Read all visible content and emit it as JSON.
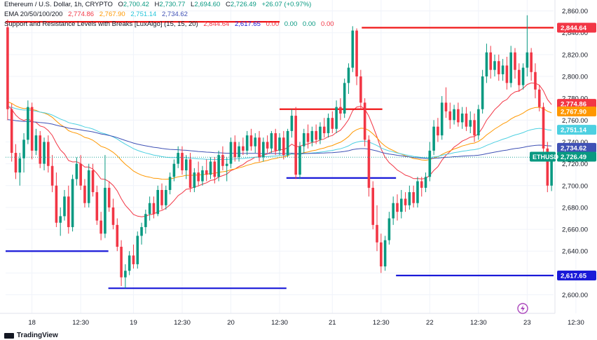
{
  "legend": {
    "line1": {
      "symbol": "Ethereum / U.S. Dollar, 1h, CRYPTO",
      "open_label": "O",
      "open": "2,700.42",
      "high_label": "H",
      "high": "2,730.77",
      "low_label": "L",
      "low": "2,694.60",
      "close_label": "C",
      "close": "2,726.49",
      "change": "+26.07 (+0.97%)"
    },
    "line2": {
      "label": "EMA 20/50/100/200",
      "ema20": "2,774.86",
      "ema50": "2,767.90",
      "ema100": "2,751.14",
      "ema200": "2,734.62"
    },
    "line3": {
      "label": "Support and Resistance Levels with Breaks [LuxAlgo] (15, 15, 20)",
      "v1": "2,844.64",
      "v2": "2,617.65",
      "v3": "0.00",
      "v4": "0.00",
      "v5": "0.00",
      "v6": "0.00"
    }
  },
  "branding": {
    "text": "TradingView"
  },
  "colors": {
    "up": "#089981",
    "down": "#f23645",
    "resistance": "#f01616",
    "support": "#1a1ad8",
    "ema20": "#f23645",
    "ema50": "#ff9800",
    "ema100": "#4dd0e1",
    "ema200": "#3f51b5",
    "crosshair": "#26a69a"
  },
  "chart_data": {
    "type": "candlestick",
    "title": "Ethereum / U.S. Dollar, 1h, CRYPTO",
    "ylim": [
      2583,
      2870
    ],
    "y_ticks": [
      2600,
      2620,
      2640,
      2660,
      2680,
      2700,
      2720,
      2740,
      2760,
      2780,
      2800,
      2820,
      2840,
      2860
    ],
    "x_ticks": [
      {
        "bar": 6,
        "label": "18"
      },
      {
        "bar": 18,
        "label": "12:30"
      },
      {
        "bar": 31,
        "label": "19"
      },
      {
        "bar": 43,
        "label": "12:30"
      },
      {
        "bar": 55,
        "label": "20"
      },
      {
        "bar": 67,
        "label": "12:30"
      },
      {
        "bar": 80,
        "label": "21"
      },
      {
        "bar": 92,
        "label": "12:30"
      },
      {
        "bar": 104,
        "label": "22"
      },
      {
        "bar": 116,
        "label": "12:30"
      },
      {
        "bar": 128,
        "label": "23"
      },
      {
        "bar": 140,
        "label": "12:30"
      },
      {
        "bar": 153,
        "label": "24"
      },
      {
        "bar": 165,
        "label": "12:30"
      }
    ],
    "candles": [
      [
        2845,
        2852,
        2760,
        2770
      ],
      [
        2770,
        2775,
        2722,
        2730
      ],
      [
        2730,
        2738,
        2706,
        2712
      ],
      [
        2712,
        2730,
        2700,
        2725
      ],
      [
        2725,
        2748,
        2712,
        2742
      ],
      [
        2742,
        2778,
        2738,
        2772
      ],
      [
        2772,
        2776,
        2724,
        2732
      ],
      [
        2732,
        2752,
        2728,
        2746
      ],
      [
        2746,
        2750,
        2716,
        2720
      ],
      [
        2720,
        2744,
        2714,
        2740
      ],
      [
        2740,
        2746,
        2712,
        2718
      ],
      [
        2718,
        2728,
        2694,
        2700
      ],
      [
        2700,
        2712,
        2662,
        2666
      ],
      [
        2666,
        2680,
        2654,
        2672
      ],
      [
        2672,
        2696,
        2668,
        2690
      ],
      [
        2690,
        2700,
        2656,
        2662
      ],
      [
        2662,
        2710,
        2658,
        2706
      ],
      [
        2706,
        2726,
        2700,
        2720
      ],
      [
        2720,
        2728,
        2696,
        2700
      ],
      [
        2700,
        2706,
        2680,
        2684
      ],
      [
        2684,
        2720,
        2680,
        2714
      ],
      [
        2714,
        2720,
        2690,
        2694
      ],
      [
        2694,
        2700,
        2664,
        2668
      ],
      [
        2668,
        2676,
        2650,
        2656
      ],
      [
        2656,
        2728,
        2652,
        2698
      ],
      [
        2698,
        2704,
        2676,
        2680
      ],
      [
        2680,
        2688,
        2660,
        2664
      ],
      [
        2664,
        2670,
        2640,
        2644
      ],
      [
        2644,
        2650,
        2608,
        2616
      ],
      [
        2616,
        2628,
        2606,
        2622
      ],
      [
        2622,
        2640,
        2618,
        2636
      ],
      [
        2636,
        2646,
        2624,
        2628
      ],
      [
        2628,
        2658,
        2624,
        2654
      ],
      [
        2654,
        2666,
        2646,
        2662
      ],
      [
        2662,
        2678,
        2656,
        2674
      ],
      [
        2674,
        2690,
        2668,
        2684
      ],
      [
        2684,
        2690,
        2670,
        2674
      ],
      [
        2674,
        2700,
        2672,
        2696
      ],
      [
        2696,
        2702,
        2678,
        2682
      ],
      [
        2682,
        2700,
        2678,
        2696
      ],
      [
        2696,
        2712,
        2692,
        2708
      ],
      [
        2708,
        2724,
        2704,
        2720
      ],
      [
        2720,
        2736,
        2716,
        2730
      ],
      [
        2730,
        2736,
        2710,
        2714
      ],
      [
        2714,
        2728,
        2706,
        2724
      ],
      [
        2724,
        2730,
        2694,
        2698
      ],
      [
        2698,
        2716,
        2694,
        2712
      ],
      [
        2712,
        2722,
        2700,
        2704
      ],
      [
        2704,
        2718,
        2700,
        2714
      ],
      [
        2714,
        2724,
        2704,
        2710
      ],
      [
        2710,
        2726,
        2706,
        2722
      ],
      [
        2722,
        2726,
        2702,
        2708
      ],
      [
        2708,
        2732,
        2704,
        2728
      ],
      [
        2728,
        2736,
        2714,
        2718
      ],
      [
        2718,
        2726,
        2704,
        2720
      ],
      [
        2720,
        2744,
        2716,
        2740
      ],
      [
        2740,
        2746,
        2722,
        2726
      ],
      [
        2726,
        2740,
        2722,
        2736
      ],
      [
        2736,
        2744,
        2728,
        2732
      ],
      [
        2732,
        2750,
        2728,
        2746
      ],
      [
        2746,
        2752,
        2732,
        2736
      ],
      [
        2736,
        2748,
        2730,
        2744
      ],
      [
        2744,
        2750,
        2722,
        2726
      ],
      [
        2726,
        2744,
        2722,
        2740
      ],
      [
        2740,
        2746,
        2730,
        2734
      ],
      [
        2734,
        2750,
        2730,
        2748
      ],
      [
        2748,
        2752,
        2728,
        2732
      ],
      [
        2732,
        2748,
        2728,
        2744
      ],
      [
        2744,
        2750,
        2724,
        2728
      ],
      [
        2728,
        2752,
        2726,
        2750
      ],
      [
        2750,
        2770,
        2744,
        2764
      ],
      [
        2764,
        2772,
        2706,
        2710
      ],
      [
        2710,
        2740,
        2706,
        2736
      ],
      [
        2736,
        2752,
        2730,
        2748
      ],
      [
        2748,
        2756,
        2734,
        2740
      ],
      [
        2740,
        2754,
        2736,
        2750
      ],
      [
        2750,
        2756,
        2738,
        2742
      ],
      [
        2742,
        2758,
        2738,
        2754
      ],
      [
        2754,
        2762,
        2744,
        2748
      ],
      [
        2748,
        2766,
        2744,
        2762
      ],
      [
        2762,
        2768,
        2748,
        2752
      ],
      [
        2752,
        2778,
        2748,
        2772
      ],
      [
        2772,
        2780,
        2760,
        2766
      ],
      [
        2766,
        2798,
        2762,
        2794
      ],
      [
        2794,
        2812,
        2784,
        2808
      ],
      [
        2808,
        2846,
        2804,
        2842
      ],
      [
        2842,
        2844,
        2792,
        2800
      ],
      [
        2800,
        2806,
        2770,
        2776
      ],
      [
        2776,
        2780,
        2736,
        2742
      ],
      [
        2742,
        2746,
        2690,
        2698
      ],
      [
        2698,
        2704,
        2660,
        2664
      ],
      [
        2664,
        2682,
        2640,
        2648
      ],
      [
        2648,
        2656,
        2620,
        2626
      ],
      [
        2626,
        2654,
        2622,
        2650
      ],
      [
        2650,
        2676,
        2646,
        2670
      ],
      [
        2670,
        2690,
        2664,
        2684
      ],
      [
        2684,
        2692,
        2668,
        2676
      ],
      [
        2676,
        2696,
        2670,
        2688
      ],
      [
        2688,
        2694,
        2676,
        2682
      ],
      [
        2682,
        2700,
        2678,
        2694
      ],
      [
        2694,
        2700,
        2680,
        2684
      ],
      [
        2684,
        2708,
        2680,
        2704
      ],
      [
        2704,
        2708,
        2690,
        2698
      ],
      [
        2698,
        2712,
        2694,
        2708
      ],
      [
        2708,
        2740,
        2704,
        2732
      ],
      [
        2732,
        2760,
        2728,
        2754
      ],
      [
        2754,
        2762,
        2740,
        2746
      ],
      [
        2746,
        2782,
        2742,
        2776
      ],
      [
        2776,
        2790,
        2762,
        2768
      ],
      [
        2768,
        2776,
        2752,
        2760
      ],
      [
        2760,
        2774,
        2756,
        2770
      ],
      [
        2770,
        2776,
        2754,
        2758
      ],
      [
        2758,
        2772,
        2752,
        2766
      ],
      [
        2766,
        2772,
        2750,
        2754
      ],
      [
        2754,
        2768,
        2748,
        2760
      ],
      [
        2760,
        2766,
        2740,
        2746
      ],
      [
        2746,
        2774,
        2742,
        2770
      ],
      [
        2770,
        2806,
        2766,
        2800
      ],
      [
        2800,
        2830,
        2794,
        2822
      ],
      [
        2822,
        2828,
        2798,
        2806
      ],
      [
        2806,
        2820,
        2800,
        2814
      ],
      [
        2814,
        2820,
        2796,
        2802
      ],
      [
        2802,
        2816,
        2796,
        2810
      ],
      [
        2810,
        2818,
        2788,
        2794
      ],
      [
        2794,
        2828,
        2790,
        2822
      ],
      [
        2822,
        2826,
        2798,
        2806
      ],
      [
        2806,
        2812,
        2786,
        2792
      ],
      [
        2792,
        2812,
        2788,
        2808
      ],
      [
        2808,
        2856,
        2800,
        2822
      ],
      [
        2822,
        2826,
        2796,
        2804
      ],
      [
        2804,
        2812,
        2780,
        2788
      ],
      [
        2788,
        2792,
        2768,
        2772
      ],
      [
        2772,
        2776,
        2730,
        2734
      ],
      [
        2734,
        2740,
        2694,
        2700
      ],
      [
        2700,
        2731,
        2695,
        2726
      ]
    ],
    "ema": [
      {
        "name": "EMA 20",
        "value": 2774.86
      },
      {
        "name": "EMA 50",
        "value": 2767.9
      },
      {
        "name": "EMA 100",
        "value": 2751.14
      },
      {
        "name": "EMA 200",
        "value": 2734.62
      }
    ],
    "levels": [
      {
        "kind": "resistance",
        "price": 2850,
        "from": 0,
        "to": 39
      },
      {
        "kind": "resistance",
        "price": 2770,
        "from": 40,
        "to": 54
      },
      {
        "kind": "resistance",
        "price": 2844.64,
        "from": 52,
        "to": 79
      },
      {
        "kind": "support",
        "price": 2640,
        "from": 0,
        "to": 14
      },
      {
        "kind": "support",
        "price": 2606,
        "from": 15,
        "to": 40
      },
      {
        "kind": "support",
        "price": 2707,
        "from": 41,
        "to": 56
      },
      {
        "kind": "support",
        "price": 2617.65,
        "from": 57,
        "to": 79
      }
    ],
    "price_labels": [
      {
        "value": 2844.64,
        "text": "2,844.64",
        "color": "#f23645"
      },
      {
        "value": 2774.86,
        "text": "2,774.86",
        "color": "#f23645"
      },
      {
        "value": 2767.9,
        "text": "2,767.90",
        "color": "#ff9800"
      },
      {
        "value": 2751.14,
        "text": "2,751.14",
        "color": "#4dd0e1"
      },
      {
        "value": 2734.62,
        "text": "2,734.62",
        "color": "#3f51b5"
      },
      {
        "value": 2726.49,
        "text": "2,726.49",
        "color": "#089981",
        "tag": "ETHUSD"
      },
      {
        "value": 2617.65,
        "text": "2,617.65",
        "color": "#1a1ad8"
      }
    ]
  }
}
